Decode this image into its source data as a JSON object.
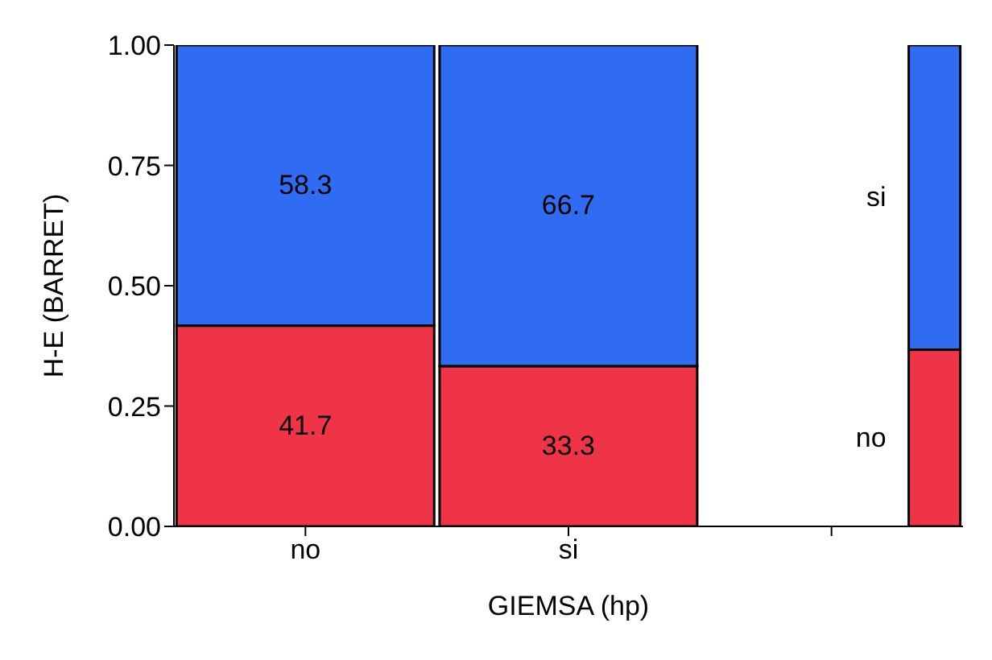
{
  "chart_data": {
    "type": "bar",
    "stacked": true,
    "xlabel": "GIEMSA (hp)",
    "ylabel": "H-E (BARRET)",
    "categories": [
      "no",
      "si",
      null
    ],
    "series": [
      {
        "name": "no",
        "color": "#ef3448",
        "values": [
          0.417,
          0.333,
          0.367
        ]
      },
      {
        "name": "si",
        "color": "#2f6cf2",
        "values": [
          0.583,
          0.667,
          0.633
        ]
      }
    ],
    "annotations": [
      "41.7",
      "33.3",
      "58.3",
      "66.7"
    ],
    "ylim": [
      0,
      1
    ],
    "yticks": [
      {
        "value": 0,
        "label": "0.00"
      },
      {
        "value": 0.25,
        "label": "0.25"
      },
      {
        "value": 0.5,
        "label": "0.50"
      },
      {
        "value": 0.75,
        "label": "0.75"
      },
      {
        "value": 1,
        "label": "1.00"
      }
    ],
    "grid": false,
    "legend": false
  }
}
